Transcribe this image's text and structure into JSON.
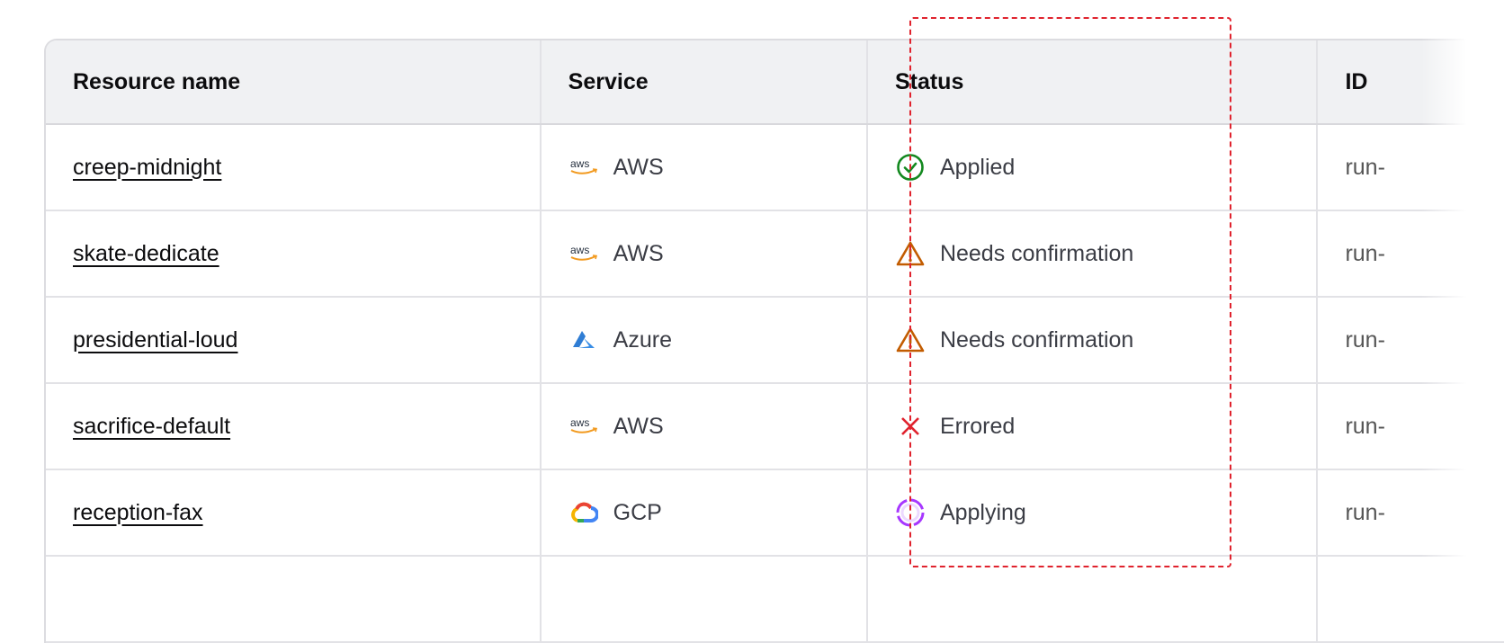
{
  "columns": [
    "Resource name",
    "Service",
    "Status",
    "ID"
  ],
  "rows": [
    {
      "name": "creep-midnight",
      "service": "AWS",
      "service_icon": "aws-logo-icon",
      "status": "Applied",
      "status_icon": "check-circle-icon",
      "id": "run-"
    },
    {
      "name": "skate-dedicate",
      "service": "AWS",
      "service_icon": "aws-logo-icon",
      "status": "Needs confirmation",
      "status_icon": "warning-triangle-icon",
      "id": "run-"
    },
    {
      "name": "presidential-loud",
      "service": "Azure",
      "service_icon": "azure-logo-icon",
      "status": "Needs confirmation",
      "status_icon": "warning-triangle-icon",
      "id": "run-"
    },
    {
      "name": "sacrifice-default",
      "service": "AWS",
      "service_icon": "aws-logo-icon",
      "status": "Errored",
      "status_icon": "x-icon",
      "id": "run-"
    },
    {
      "name": "reception-fax",
      "service": "GCP",
      "service_icon": "gcp-logo-icon",
      "status": "Applying",
      "status_icon": "loading-icon",
      "id": "run-"
    }
  ],
  "colors": {
    "applied": "#13891f",
    "warning": "#c25c00",
    "errored": "#e0232e",
    "applying": "#a737ff",
    "focus_outline": "#e0232e"
  }
}
